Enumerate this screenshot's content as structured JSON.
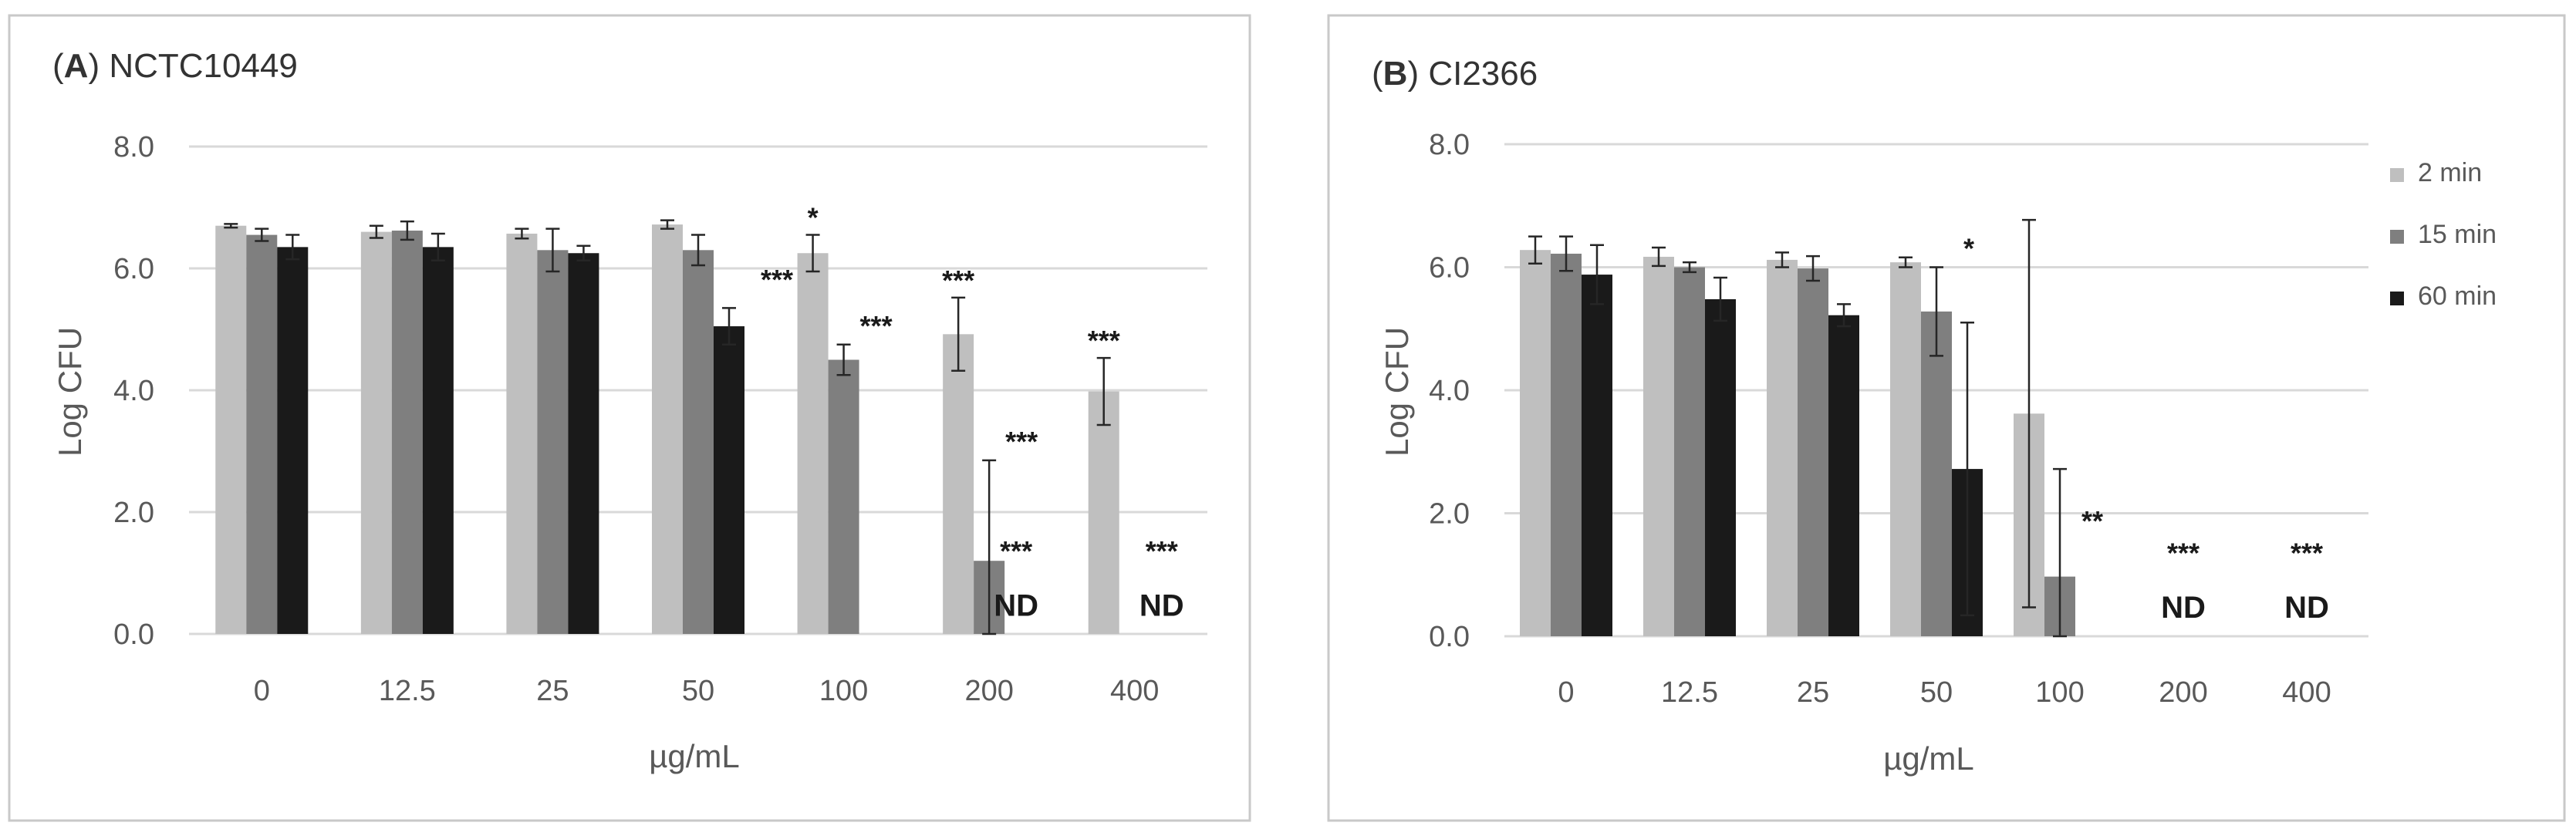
{
  "chart_data": [
    {
      "type": "bar",
      "panel_label": "A",
      "title": "NCTC10449",
      "xlabel": "µg/mL",
      "ylabel": "Log CFU",
      "ylim": [
        0,
        8
      ],
      "yticks": [
        "0.0",
        "2.0",
        "4.0",
        "6.0",
        "8.0"
      ],
      "categories": [
        "0",
        "12.5",
        "25",
        "50",
        "100",
        "200",
        "400"
      ],
      "series": [
        {
          "name": "2 min",
          "color": "#bfbfbf",
          "values": [
            6.7,
            6.6,
            6.57,
            6.72,
            6.25,
            4.92,
            3.98
          ],
          "errors": [
            0.03,
            0.1,
            0.08,
            0.07,
            0.3,
            0.6,
            0.55
          ],
          "marks": [
            "",
            "",
            "",
            "",
            "*",
            "***",
            "***"
          ]
        },
        {
          "name": "15 min",
          "color": "#7f7f7f",
          "values": [
            6.55,
            6.62,
            6.3,
            6.3,
            4.5,
            1.2,
            null
          ],
          "errors": [
            0.1,
            0.15,
            0.35,
            0.25,
            0.25,
            1.65,
            null
          ],
          "marks": [
            "",
            "",
            "",
            "",
            "***",
            "***",
            ""
          ]
        },
        {
          "name": "60 min",
          "color": "#1a1a1a",
          "values": [
            6.35,
            6.35,
            6.25,
            5.05,
            null,
            null,
            null
          ],
          "errors": [
            0.2,
            0.22,
            0.12,
            0.3,
            null,
            null,
            null
          ],
          "marks": [
            "",
            "",
            "",
            "***",
            "",
            "",
            ""
          ]
        }
      ],
      "nd_labels": [
        {
          "category": "200",
          "sig": "***",
          "text": "ND"
        },
        {
          "category": "400",
          "sig": "***",
          "text": "ND"
        }
      ],
      "legend": null
    },
    {
      "type": "bar",
      "panel_label": "B",
      "title": "CI2366",
      "xlabel": "µg/mL",
      "ylabel": "Log CFU",
      "ylim": [
        0,
        8
      ],
      "yticks": [
        "0.0",
        "2.0",
        "4.0",
        "6.0",
        "8.0"
      ],
      "categories": [
        "0",
        "12.5",
        "25",
        "50",
        "100",
        "200",
        "400"
      ],
      "series": [
        {
          "name": "2 min",
          "color": "#bfbfbf",
          "values": [
            6.28,
            6.17,
            6.12,
            6.08,
            3.62,
            null,
            null
          ],
          "errors": [
            0.22,
            0.15,
            0.12,
            0.08,
            3.15,
            null,
            null
          ],
          "marks": [
            "",
            "",
            "",
            "",
            "",
            "",
            ""
          ]
        },
        {
          "name": "15 min",
          "color": "#7f7f7f",
          "values": [
            6.22,
            6.0,
            5.98,
            5.28,
            0.97,
            null,
            null
          ],
          "errors": [
            0.28,
            0.08,
            0.2,
            0.72,
            1.75,
            null,
            null
          ],
          "marks": [
            "",
            "",
            "",
            "*",
            "**",
            "",
            ""
          ]
        },
        {
          "name": "60 min",
          "color": "#1a1a1a",
          "values": [
            5.88,
            5.48,
            5.22,
            2.72,
            null,
            null,
            null
          ],
          "errors": [
            0.48,
            0.35,
            0.18,
            2.38,
            null,
            null,
            null
          ],
          "marks": [
            "",
            "",
            "",
            "",
            "",
            "",
            ""
          ]
        }
      ],
      "nd_labels": [
        {
          "category": "200",
          "sig": "***",
          "text": "ND"
        },
        {
          "category": "400",
          "sig": "***",
          "text": "ND"
        }
      ],
      "legend": "right"
    }
  ]
}
